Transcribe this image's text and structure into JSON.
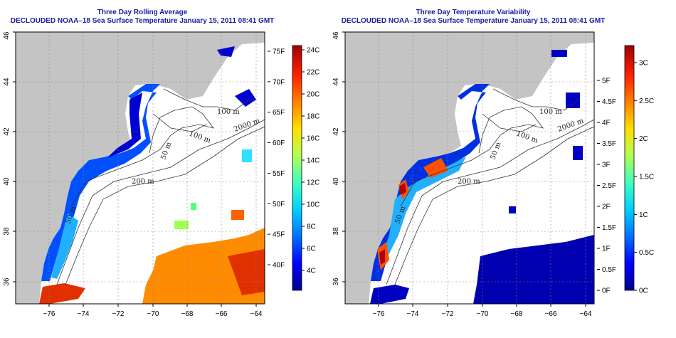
{
  "panels": [
    {
      "id": "left",
      "title_line1": "Three Day Rolling Average",
      "title_line2": "DECLOUDED NOAA–18 Sea Surface Temperature January 15, 2011 08:41 GMT",
      "x_ticks": [
        "−76",
        "−74",
        "−72",
        "−70",
        "−68",
        "−66",
        "−64"
      ],
      "y_ticks": [
        "36",
        "38",
        "40",
        "42",
        "44",
        "46"
      ],
      "colorbar_left_labels": [
        "40F",
        "45F",
        "50F",
        "55F",
        "60F",
        "65F",
        "70F",
        "75F"
      ],
      "colorbar_right_labels": [
        "4C",
        "6C",
        "8C",
        "10C",
        "12C",
        "14C",
        "16C",
        "18C",
        "20C",
        "22C",
        "24C"
      ],
      "contour_labels": [
        "100 m",
        "200 m",
        "2000 m",
        "100 m",
        "50 m",
        "50 m"
      ]
    },
    {
      "id": "right",
      "title_line1": "Three Day Temperature Variability",
      "title_line2": "DECLOUDED NOAA–18 Sea Surface Temperature January 15, 2011 08:41 GMT",
      "x_ticks": [
        "−76",
        "−74",
        "−72",
        "−70",
        "−68",
        "−66",
        "−64"
      ],
      "y_ticks": [
        "36",
        "38",
        "40",
        "42",
        "44",
        "46"
      ],
      "colorbar_left_labels": [
        "0F",
        "0.5F",
        "1F",
        "1.5F",
        "2F",
        "2.5F",
        "3F",
        "3.5F",
        "4F",
        "4.5F",
        "5F"
      ],
      "colorbar_right_labels": [
        "0C",
        "0.5C",
        "1C",
        "1.5C",
        "2C",
        "2.5C",
        "3C"
      ],
      "contour_labels": [
        "100 m",
        "200 m",
        "2000 m",
        "100 m",
        "50 m",
        "50 m"
      ]
    }
  ],
  "colors": {
    "land": "#c4c4c4",
    "ocean_nodata": "#ffffff",
    "title": "#1a1aa6",
    "ramp": [
      "#00008f",
      "#0000ff",
      "#0070ff",
      "#00d0ff",
      "#40ffc0",
      "#b0ff50",
      "#ffe000",
      "#ff8000",
      "#ff2000",
      "#a00000"
    ]
  }
}
